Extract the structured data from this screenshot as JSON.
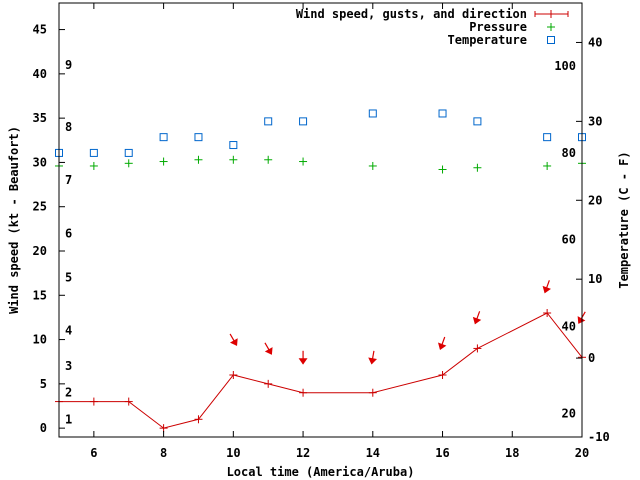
{
  "chart_data": {
    "type": "line",
    "title": "",
    "xlabel": "Local time (America/Aruba)",
    "ylabel": "Wind speed (kt - Beaufort)",
    "y2label": "Temperature (C - F)",
    "xlim": [
      5,
      20
    ],
    "ylim": [
      -1,
      48
    ],
    "y2lim": [
      -10,
      45
    ],
    "x_ticks": [
      6,
      8,
      10,
      12,
      14,
      16,
      18,
      20
    ],
    "y_ticks": [
      0,
      5,
      10,
      15,
      20,
      25,
      30,
      35,
      40,
      45
    ],
    "y2_ticks": [
      -10,
      0,
      10,
      20,
      30,
      40
    ],
    "beaufort_labels": [
      {
        "label": "1",
        "y": 1
      },
      {
        "label": "2",
        "y": 4
      },
      {
        "label": "3",
        "y": 7
      },
      {
        "label": "4",
        "y": 11
      },
      {
        "label": "5",
        "y": 17
      },
      {
        "label": "6",
        "y": 22
      },
      {
        "label": "7",
        "y": 28
      },
      {
        "label": "8",
        "y": 34
      },
      {
        "label": "9",
        "y": 41
      }
    ],
    "fahrenheit_labels": [
      {
        "label": "20",
        "t": -7
      },
      {
        "label": "40",
        "t": 4
      },
      {
        "label": "60",
        "t": 15
      },
      {
        "label": "80",
        "t": 26
      },
      {
        "label": "100",
        "t": 37
      }
    ],
    "legend": [
      {
        "label": "Wind speed, gusts, and direction",
        "series": "wind"
      },
      {
        "label": "Pressure",
        "series": "pressure"
      },
      {
        "label": "Temperature",
        "series": "temperature"
      }
    ],
    "series": {
      "wind": {
        "name": "Wind speed, gusts, and direction",
        "color": "#cc0000",
        "x": [
          5,
          6,
          7,
          8,
          9,
          10,
          11,
          12,
          14,
          16,
          17,
          19,
          20
        ],
        "values": [
          3,
          3,
          3,
          0,
          1,
          6,
          5,
          4,
          4,
          6,
          9,
          13,
          8
        ]
      },
      "direction_arrows": {
        "color": "#dd0000",
        "x": [
          10,
          11,
          12,
          14,
          16,
          17,
          19,
          20
        ],
        "y": [
          10,
          9,
          8,
          8,
          9.6,
          12.5,
          16,
          12.5
        ],
        "direction_deg": [
          330,
          330,
          0,
          10,
          20,
          20,
          20,
          30
        ]
      },
      "pressure": {
        "name": "Pressure",
        "color": "#00aa00",
        "x": [
          5,
          6,
          7,
          8,
          9,
          10,
          11,
          12,
          14,
          16,
          17,
          19,
          20
        ],
        "values": [
          29.6,
          29.6,
          29.9,
          30.1,
          30.3,
          30.3,
          30.3,
          30.1,
          29.6,
          29.2,
          29.4,
          29.6,
          29.9
        ]
      },
      "temperature": {
        "name": "Temperature",
        "color": "#0066cc",
        "axis": "y2",
        "x": [
          5,
          6,
          7,
          8,
          9,
          10,
          11,
          12,
          14,
          16,
          17,
          19,
          20
        ],
        "values": [
          26,
          26,
          26,
          28,
          28,
          27,
          30,
          30,
          31,
          31,
          30,
          28,
          28
        ]
      }
    }
  }
}
